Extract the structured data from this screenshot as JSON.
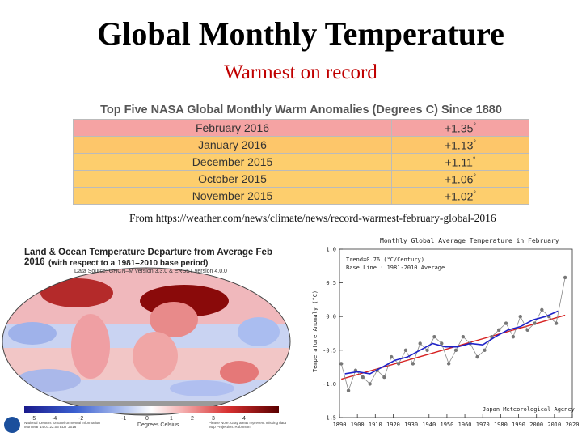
{
  "title": "Global Monthly Temperature",
  "subtitle": "Warmest on record",
  "anomalies": {
    "heading": "Top Five NASA Global Monthly Warm Anomalies (Degrees C) Since 1880",
    "rows": [
      {
        "month": "February 2016",
        "value": "+1.35",
        "mark": "°"
      },
      {
        "month": "January 2016",
        "value": "+1.13",
        "mark": "°"
      },
      {
        "month": "December 2015",
        "value": "+1.11",
        "mark": "°"
      },
      {
        "month": "October 2015",
        "value": "+1.06",
        "mark": "°"
      },
      {
        "month": "November 2015",
        "value": "+1.02",
        "mark": "°"
      }
    ]
  },
  "source": "From https://weather.com/news/climate/news/record-warmest-february-global-2016",
  "map": {
    "title": "Land & Ocean Temperature Departure from Average Feb 2016",
    "sub1": "(with respect to a 1981–2010 base period)",
    "sub2": "Data Source: GHCN–M version 3.3.0 & ERSST version 4.0.0",
    "colorbar_ticks": [
      "-5",
      "-4",
      "-2",
      "-1",
      "0",
      "1",
      "2",
      "3",
      "4"
    ],
    "colorbar_label": "Degrees Celsius",
    "credit_left_1": "National Centers for Environmental Information",
    "credit_left_2": "Mon Mar 14 07:22:03 EDT 2016",
    "credit_right_1": "Please Note: Gray areas represent missing data",
    "credit_right_2": "Map Projection: Robinson"
  },
  "chart_data": {
    "type": "line",
    "title": "Monthly Global Average Temperature in February",
    "annotation_1": "Trend=0.76 (°C/Century)",
    "annotation_2": "Base Line : 1981-2010 Average",
    "footer": "Japan Meteorological Agency",
    "ylabel": "Temperature Anomaly (°C)",
    "xlabel": "",
    "xlim": [
      1890,
      2020
    ],
    "ylim": [
      -1.5,
      1.0
    ],
    "x_ticks": [
      "1890",
      "1900",
      "1910",
      "1920",
      "1930",
      "1940",
      "1950",
      "1960",
      "1970",
      "1980",
      "1990",
      "2000",
      "2010",
      "2020"
    ],
    "y_ticks": [
      "1.0",
      "0.5",
      "0.0",
      "-0.5",
      "-1.0",
      "-1.5"
    ],
    "trend": {
      "name": "trend",
      "x": [
        1891,
        2016
      ],
      "y": [
        -0.93,
        0.02
      ]
    },
    "series": [
      {
        "name": "annual",
        "x": [
          1891,
          1895,
          1899,
          1903,
          1907,
          1911,
          1915,
          1919,
          1923,
          1927,
          1931,
          1935,
          1939,
          1943,
          1947,
          1951,
          1955,
          1959,
          1963,
          1967,
          1971,
          1975,
          1979,
          1983,
          1987,
          1991,
          1995,
          1999,
          2003,
          2007,
          2011,
          2016
        ],
        "y": [
          -0.7,
          -1.1,
          -0.8,
          -0.9,
          -1.0,
          -0.8,
          -0.9,
          -0.6,
          -0.7,
          -0.5,
          -0.7,
          -0.4,
          -0.5,
          -0.3,
          -0.4,
          -0.7,
          -0.5,
          -0.3,
          -0.4,
          -0.6,
          -0.5,
          -0.3,
          -0.2,
          -0.1,
          -0.3,
          0.0,
          -0.2,
          -0.1,
          0.1,
          0.0,
          -0.1,
          0.58
        ]
      },
      {
        "name": "running mean",
        "x": [
          1893,
          1900,
          1907,
          1914,
          1921,
          1928,
          1935,
          1942,
          1949,
          1956,
          1963,
          1970,
          1977,
          1984,
          1991,
          1998,
          2005,
          2012
        ],
        "y": [
          -0.85,
          -0.82,
          -0.85,
          -0.75,
          -0.65,
          -0.6,
          -0.5,
          -0.4,
          -0.45,
          -0.45,
          -0.4,
          -0.42,
          -0.3,
          -0.2,
          -0.15,
          -0.05,
          0.0,
          0.08
        ]
      }
    ]
  },
  "colors": {
    "blue_line": "#1e22c8",
    "trend": "#d62020",
    "dots": "#777777"
  }
}
